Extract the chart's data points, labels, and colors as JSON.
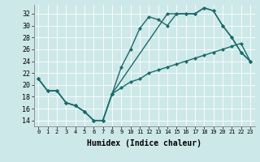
{
  "xlabel": "Humidex (Indice chaleur)",
  "bg_color": "#cde8e8",
  "line_color": "#1a6b6b",
  "xlim": [
    -0.5,
    23.5
  ],
  "ylim": [
    13,
    33.5
  ],
  "xticks": [
    0,
    1,
    2,
    3,
    4,
    5,
    6,
    7,
    8,
    9,
    10,
    11,
    12,
    13,
    14,
    15,
    16,
    17,
    18,
    19,
    20,
    21,
    22,
    23
  ],
  "yticks": [
    14,
    16,
    18,
    20,
    22,
    24,
    26,
    28,
    30,
    32
  ],
  "series1_x": [
    0,
    1,
    2,
    3,
    4,
    5,
    6,
    7,
    8,
    9,
    10,
    11,
    12,
    13,
    14,
    15,
    16,
    17,
    18,
    19,
    20,
    21,
    22,
    23
  ],
  "series1_y": [
    21,
    19,
    19,
    17,
    16.5,
    15.5,
    14,
    14,
    18.5,
    23,
    26,
    29.5,
    31.5,
    31,
    30,
    32,
    32,
    32,
    33,
    32.5,
    30,
    28,
    25.5,
    24
  ],
  "series2_x": [
    0,
    1,
    2,
    3,
    4,
    5,
    6,
    7,
    8,
    9,
    10,
    11,
    12,
    13,
    14,
    15,
    16,
    17,
    18,
    19,
    20,
    21,
    22,
    23
  ],
  "series2_y": [
    21,
    19,
    19,
    17,
    16.5,
    15.5,
    14,
    14,
    18.5,
    19.5,
    20.5,
    21,
    22,
    22.5,
    23,
    23.5,
    24,
    24.5,
    25,
    25.5,
    26,
    26.5,
    27,
    24
  ],
  "series3_x": [
    0,
    1,
    2,
    3,
    4,
    5,
    6,
    7,
    8,
    14,
    15,
    16,
    17,
    18,
    19,
    20,
    21,
    22,
    23
  ],
  "series3_y": [
    21,
    19,
    19,
    17,
    16.5,
    15.5,
    14,
    14,
    18.5,
    32,
    32,
    32,
    32,
    33,
    32.5,
    30,
    28,
    25.5,
    24
  ]
}
